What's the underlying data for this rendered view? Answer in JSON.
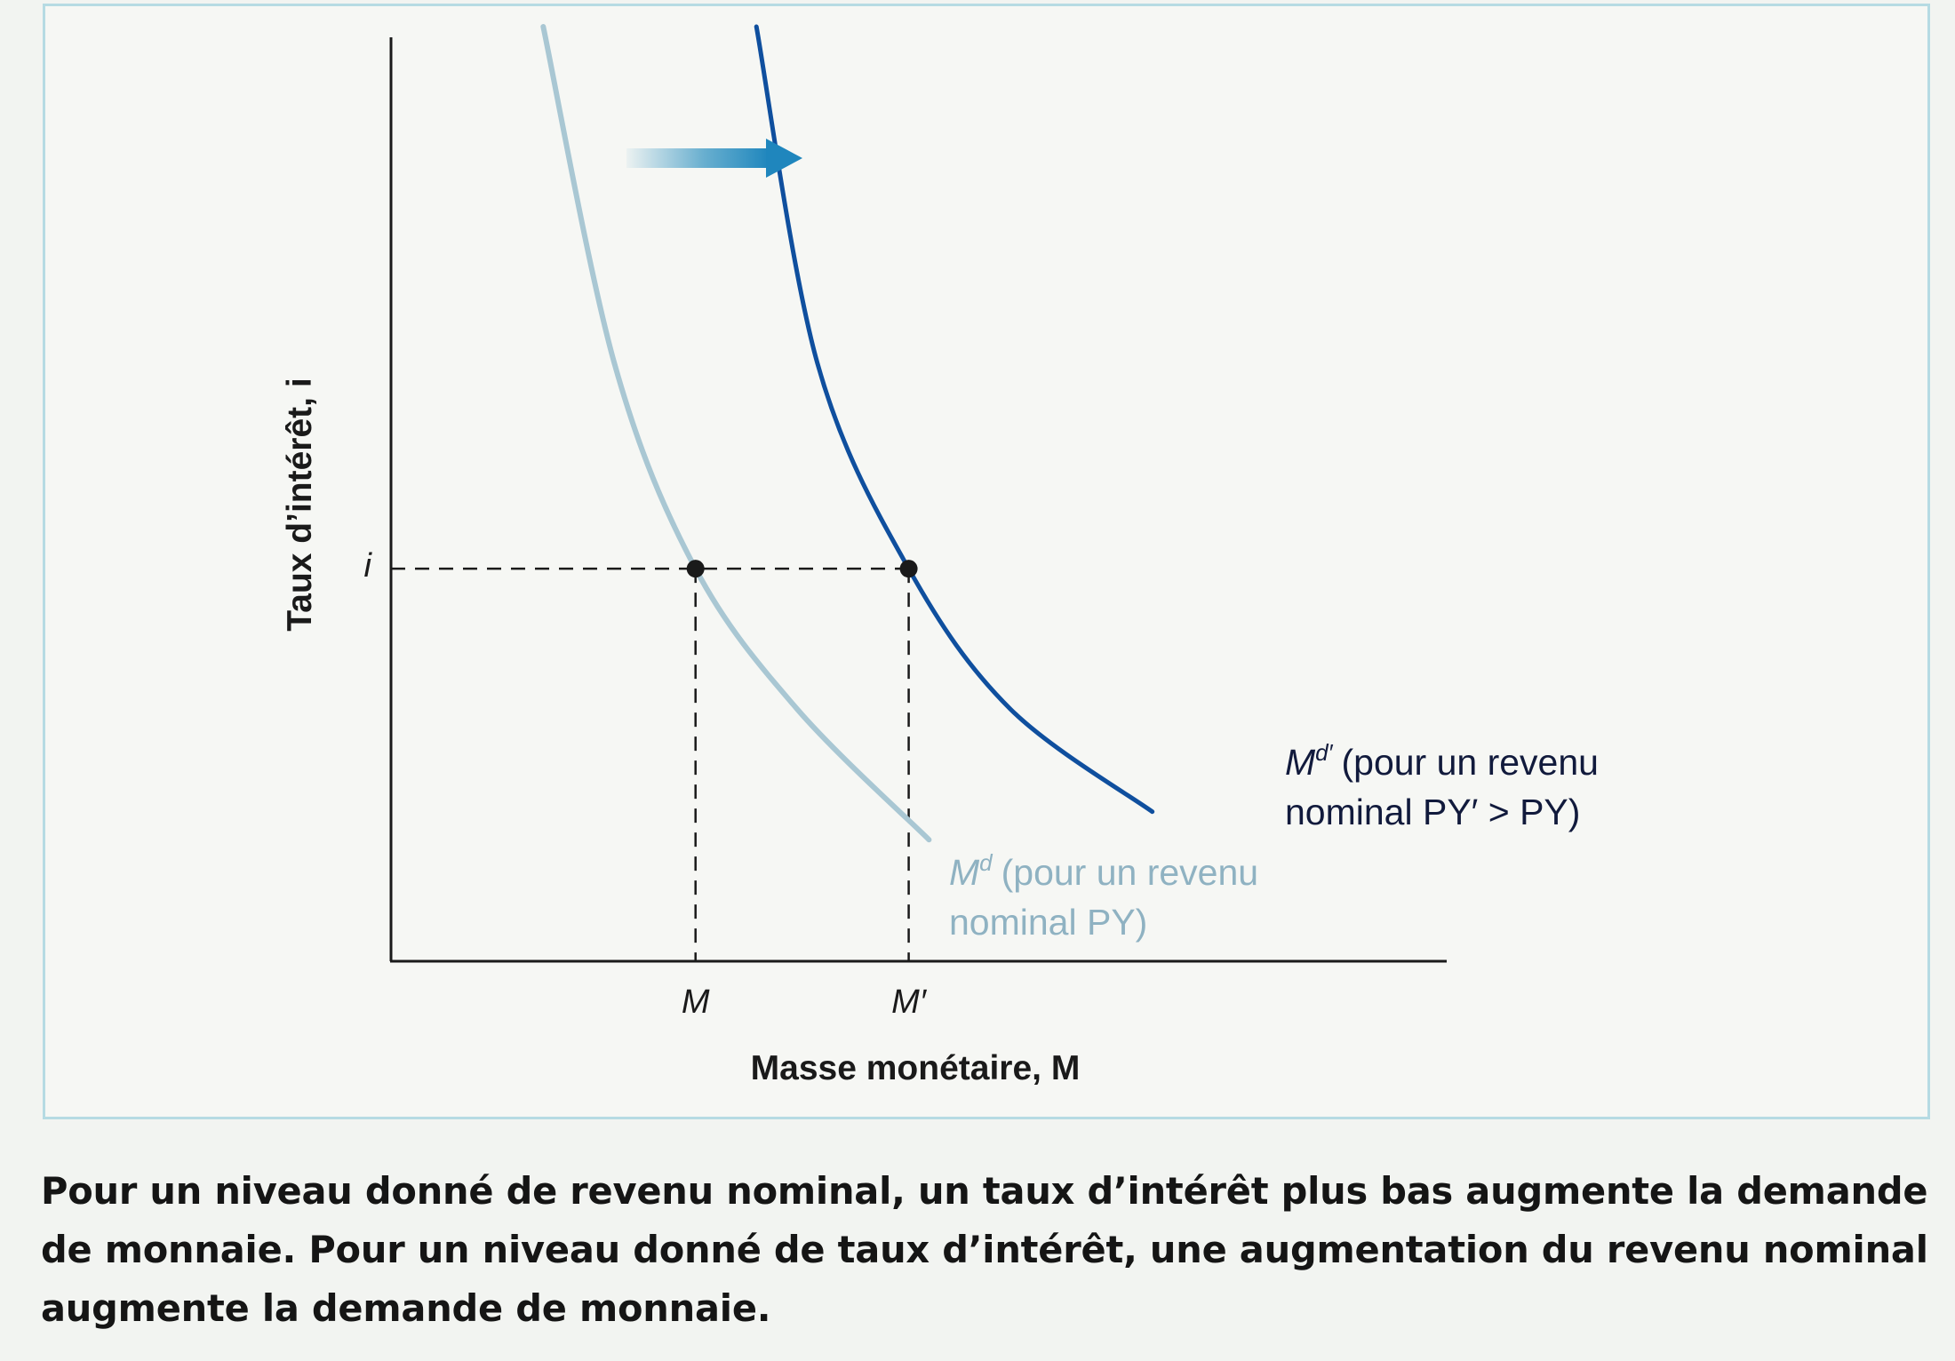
{
  "colors": {
    "curve_md": "#a9c7d3",
    "curve_md_prime": "#0f4f9e",
    "arrow": "#2a8fbf",
    "axis": "#1a1a1a",
    "frame": "#b6dbe3"
  },
  "chart_data": {
    "type": "line",
    "title": "",
    "xlabel": "Masse monétaire, M",
    "ylabel": "Taux d’intérêt, i",
    "x_ticks": [
      "M",
      "M′"
    ],
    "y_ticks": [
      "i"
    ],
    "series": [
      {
        "name": "Md (pour un revenu nominal PY)",
        "label_line1": "(pour un revenu",
        "label_line2": "nominal PY)",
        "label_symbol": "M",
        "label_superscript": "d",
        "points": [
          [
            1.5,
            10
          ],
          [
            2.2,
            6.4
          ],
          [
            3.0,
            4.2
          ],
          [
            4.0,
            2.7
          ],
          [
            5.3,
            1.3
          ]
        ]
      },
      {
        "name": "Md′ (pour un revenu nominal PY′ > PY)",
        "label_line1": "(pour un revenu",
        "label_line2": "nominal PY′ > PY)",
        "label_symbol": "M",
        "label_superscript": "d′",
        "points": [
          [
            3.6,
            10
          ],
          [
            4.2,
            6.4
          ],
          [
            5.1,
            4.2
          ],
          [
            6.1,
            2.7
          ],
          [
            7.5,
            1.6
          ]
        ]
      }
    ],
    "reference_points": [
      {
        "tick": "M",
        "x": 3.0,
        "y": 4.2
      },
      {
        "tick": "M′",
        "x": 5.1,
        "y": 4.2
      }
    ],
    "annotation": "shift arrow to the right",
    "xlim": [
      0,
      10.4
    ],
    "ylim": [
      0,
      10
    ]
  },
  "caption": "Pour un niveau donné de revenu nominal, un taux d’intérêt plus bas augmente la demande de monnaie. Pour un niveau donné de taux d’intérêt, une augmentation du revenu nominal augmente la demande de monnaie."
}
